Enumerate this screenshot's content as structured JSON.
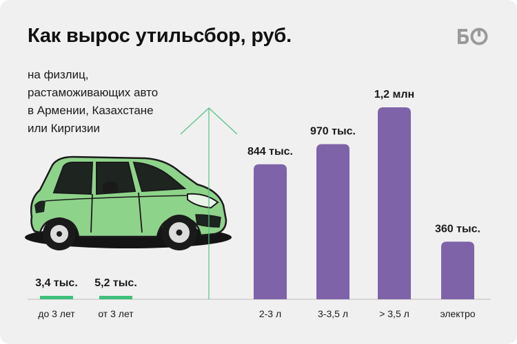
{
  "header": {
    "title": "Как вырос утильсбор, руб.",
    "subtitle_lines": [
      "на физлиц,",
      "растаможивающих авто",
      "в Армении, Казахстане",
      "или Киргизии"
    ],
    "logo_text": "БО"
  },
  "colors": {
    "background": "#f0f0f0",
    "bar_old": "#3fbf7a",
    "bar_new": "#7f63a8",
    "arrow": "#52c285",
    "car_body": "#8ed38a"
  },
  "chart_data": {
    "type": "bar",
    "ylabel": "",
    "xlabel": "",
    "panels": [
      {
        "name": "before",
        "categories": [
          "до 3 лет",
          "от 3 лет"
        ],
        "values": [
          3400,
          5200
        ],
        "labels": [
          "3,4 тыс.",
          "5,2 тыс."
        ]
      },
      {
        "name": "after",
        "categories": [
          "2-3 л",
          "3-3,5 л",
          "> 3,5 л",
          "электро"
        ],
        "values": [
          844000,
          970000,
          1200000,
          360000
        ],
        "labels": [
          "844 тыс.",
          "970 тыс.",
          "1,2 млн",
          "360 тыс."
        ]
      }
    ],
    "ylim": [
      0,
      1200000
    ],
    "grid": false,
    "legend": "none"
  }
}
